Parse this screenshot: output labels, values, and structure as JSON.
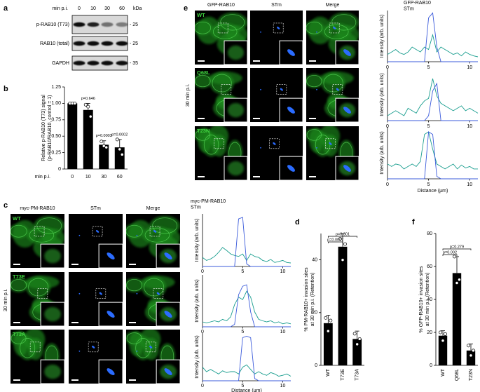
{
  "panel_labels": [
    "a",
    "b",
    "c",
    "d",
    "e",
    "f"
  ],
  "blot": {
    "header": "min p.i.",
    "lanes": [
      "0",
      "10",
      "30",
      "60"
    ],
    "unit": "kDa",
    "rows": [
      {
        "label": "p-RAB10 (T73)",
        "marker": "- 25"
      },
      {
        "label": "RAB10 (total)",
        "marker": "- 25"
      },
      {
        "label": "GAPDH",
        "marker": "- 35"
      }
    ]
  },
  "micrographs_c": {
    "columns": [
      "myc-PM-RAB10",
      "STm",
      "Merge"
    ],
    "header_colors": [
      "#3aa63a",
      "#2563d9",
      "#000000"
    ],
    "rows": [
      "WT",
      "T73E",
      "T73A"
    ],
    "side_label": "30 min p.i."
  },
  "micrographs_e": {
    "columns": [
      "GFP-RAB10",
      "STm",
      "Merge"
    ],
    "header_colors": [
      "#3aa63a",
      "#2563d9",
      "#000000"
    ],
    "rows": [
      "WT",
      "Q68L",
      "T23N"
    ],
    "side_label": "30 min p.i."
  },
  "chart_data": [
    {
      "type": "bar",
      "ylabel": [
        "Relative p-RAB10 (T73) signal",
        "(p-RAB10/RAB10, control = 1)"
      ],
      "xlabel": "min p.i.",
      "categories": [
        "0",
        "10",
        "30",
        "60"
      ],
      "values": [
        1.0,
        0.9,
        0.37,
        0.33
      ],
      "errors": [
        0,
        0.1,
        0.06,
        0.12
      ],
      "points": [
        [
          1,
          1,
          1
        ],
        [
          0.98,
          0.95,
          0.8
        ],
        [
          0.42,
          0.35,
          0.33
        ],
        [
          0.45,
          0.3,
          0.22
        ]
      ],
      "pvalues": [
        null,
        "p=0.646",
        "p=0.0003",
        "p=0.0002"
      ],
      "color": "#000000",
      "ylim": [
        0,
        1.25
      ],
      "yticks": [
        0,
        0.25,
        {
          "value": 0.5,
          "label": "0.50"
        },
        0.75,
        {
          "value": 1,
          "label": "1.00"
        },
        1.25
      ]
    },
    {
      "type": "line",
      "ylabel": "Intensity (arb. units)",
      "xlim": [
        0,
        11
      ],
      "ylim": [
        0,
        1.05
      ],
      "xticks": [
        0,
        5,
        10
      ],
      "x": [
        0,
        0.5,
        1,
        1.5,
        2,
        2.5,
        3,
        3.5,
        4,
        4.5,
        5,
        5.5,
        6,
        6.5,
        7,
        7.5,
        8,
        8.5,
        9,
        9.5,
        10,
        10.5,
        11
      ],
      "series": [
        {
          "name": "myc-PM-RAB10",
          "color": "#1a9e8f",
          "values": [
            0.18,
            0.12,
            0.15,
            0.2,
            0.28,
            0.38,
            0.32,
            0.25,
            0.22,
            0.2,
            0.25,
            0.12,
            0.25,
            0.2,
            0.18,
            0.12,
            0.1,
            0.14,
            0.08,
            0.1,
            0.12,
            0.08,
            0.07
          ]
        },
        {
          "name": "STm",
          "color": "#3b5bdb",
          "values": [
            0,
            0,
            0,
            0,
            0,
            0,
            0,
            0,
            0,
            0.95,
            0.98,
            0.05,
            0,
            0,
            0,
            0,
            0,
            0,
            0,
            0,
            0,
            0,
            0
          ]
        }
      ]
    },
    {
      "type": "line",
      "ylabel": "Intensity (arb. units)",
      "xlim": [
        0,
        11
      ],
      "ylim": [
        0,
        1.05
      ],
      "xticks": [
        0,
        5,
        10
      ],
      "x": [
        0,
        0.5,
        1,
        1.5,
        2,
        2.5,
        3,
        3.5,
        4,
        4.5,
        5,
        5.5,
        6,
        6.5,
        7,
        7.5,
        8,
        8.5,
        9,
        9.5,
        10,
        10.5,
        11
      ],
      "series": [
        {
          "color": "#1a9e8f",
          "values": [
            0.1,
            0.08,
            0.1,
            0.12,
            0.1,
            0.15,
            0.12,
            0.2,
            0.45,
            0.6,
            0.55,
            0.72,
            0.6,
            0.3,
            0.15,
            0.12,
            0.1,
            0.12,
            0.08,
            0.1,
            0.06,
            0.08,
            0.06
          ]
        },
        {
          "color": "#3b5bdb",
          "values": [
            0,
            0,
            0,
            0,
            0,
            0,
            0,
            0,
            0.05,
            0.65,
            0.82,
            0.85,
            0.3,
            0,
            0,
            0,
            0,
            0,
            0,
            0,
            0,
            0,
            0
          ]
        }
      ]
    },
    {
      "type": "line",
      "ylabel": "Intensity (arb. units)",
      "xlabel": "Distance (μm)",
      "xlim": [
        0,
        11
      ],
      "ylim": [
        0,
        1.05
      ],
      "xticks": [
        0,
        5,
        10
      ],
      "x": [
        0,
        0.5,
        1,
        1.5,
        2,
        2.5,
        3,
        3.5,
        4,
        4.5,
        5,
        5.5,
        6,
        6.5,
        7,
        7.5,
        8,
        8.5,
        9,
        9.5,
        10,
        10.5,
        11
      ],
      "series": [
        {
          "color": "#1a9e8f",
          "values": [
            0.3,
            0.2,
            0.25,
            0.2,
            0.15,
            0.22,
            0.18,
            0.2,
            0.2,
            0.15,
            0.3,
            0.35,
            0.25,
            0.15,
            0.2,
            0.15,
            0.12,
            0.18,
            0.15,
            0.1,
            0.12,
            0.15,
            0.1
          ]
        },
        {
          "color": "#3b5bdb",
          "values": [
            0,
            0,
            0,
            0,
            0,
            0,
            0,
            0,
            0,
            0,
            0.95,
            0.98,
            0.95,
            0.05,
            0,
            0,
            0,
            0,
            0,
            0,
            0,
            0,
            0
          ]
        }
      ]
    },
    {
      "type": "bar",
      "ylabel": [
        "% PM-RAB10+ invasion sites",
        "at 30 min p.i. (Retention)"
      ],
      "categories": [
        "WT",
        "T73E",
        "T73A"
      ],
      "values": [
        16,
        45,
        10
      ],
      "errors": [
        3,
        5,
        3
      ],
      "points": [
        [
          18,
          13,
          17
        ],
        [
          48,
          40,
          46
        ],
        [
          12,
          8,
          10
        ]
      ],
      "color": "#000000",
      "comparisons": [
        {
          "pair": [
            "WT",
            "T73E"
          ],
          "label": "p=0.0007"
        },
        {
          "pair": [
            "WT",
            "T73A"
          ],
          "label": "p=0.301"
        }
      ],
      "ylim": [
        0,
        50
      ],
      "yticks": [
        0,
        20,
        40
      ]
    },
    {
      "type": "line",
      "ylabel": "Intensity (arb. units)",
      "xlim": [
        0,
        11
      ],
      "ylim": [
        0,
        1.05
      ],
      "xticks": [
        0,
        5,
        10
      ],
      "x": [
        0,
        0.5,
        1,
        1.5,
        2,
        2.5,
        3,
        3.5,
        4,
        4.5,
        5,
        5.5,
        6,
        6.5,
        7,
        7.5,
        8,
        8.5,
        9,
        9.5,
        10,
        10.5,
        11
      ],
      "series": [
        {
          "name": "GFP-RAB10",
          "color": "#1a9e8f",
          "values": [
            0.15,
            0.2,
            0.25,
            0.18,
            0.15,
            0.2,
            0.3,
            0.25,
            0.2,
            0.3,
            0.25,
            0.55,
            0.2,
            0.3,
            0.25,
            0.2,
            0.15,
            0.18,
            0.12,
            0.2,
            0.15,
            0.12,
            0.1
          ]
        },
        {
          "name": "STm",
          "color": "#3b5bdb",
          "values": [
            0,
            0,
            0,
            0,
            0,
            0,
            0,
            0,
            0,
            0,
            0.9,
            1.0,
            0.3,
            0,
            0,
            0,
            0,
            0,
            0,
            0,
            0,
            0,
            0
          ]
        }
      ]
    },
    {
      "type": "line",
      "ylabel": "Intensity (arb. units)",
      "xlim": [
        0,
        11
      ],
      "ylim": [
        0,
        1.05
      ],
      "xticks": [
        0,
        5,
        10
      ],
      "x": [
        0,
        0.5,
        1,
        1.5,
        2,
        2.5,
        3,
        3.5,
        4,
        4.5,
        5,
        5.5,
        6,
        6.5,
        7,
        7.5,
        8,
        8.5,
        9,
        9.5,
        10,
        10.5,
        11
      ],
      "series": [
        {
          "color": "#1a9e8f",
          "values": [
            0.1,
            0.15,
            0.2,
            0.15,
            0.1,
            0.25,
            0.2,
            0.15,
            0.3,
            0.4,
            0.45,
            0.85,
            0.5,
            0.35,
            0.3,
            0.25,
            0.2,
            0.25,
            0.3,
            0.2,
            0.25,
            0.2,
            0.15
          ]
        },
        {
          "color": "#3b5bdb",
          "values": [
            0,
            0,
            0,
            0,
            0,
            0,
            0,
            0,
            0,
            0,
            0.1,
            0.6,
            0.75,
            0,
            0,
            0,
            0,
            0,
            0,
            0,
            0,
            0,
            0
          ]
        }
      ]
    },
    {
      "type": "line",
      "ylabel": "Intensity (arb. units)",
      "xlabel": "Distance (μm)",
      "xlim": [
        0,
        11
      ],
      "ylim": [
        0,
        1.05
      ],
      "xticks": [
        0,
        5,
        10
      ],
      "x": [
        0,
        0.5,
        1,
        1.5,
        2,
        2.5,
        3,
        3.5,
        4,
        4.5,
        5,
        5.5,
        6,
        6.5,
        7,
        7.5,
        8,
        8.5,
        9,
        9.5,
        10,
        10.5,
        11
      ],
      "series": [
        {
          "color": "#1a9e8f",
          "values": [
            0.3,
            0.25,
            0.3,
            0.28,
            0.2,
            0.25,
            0.3,
            0.25,
            0.35,
            0.9,
            0.95,
            0.6,
            0.3,
            0.25,
            0.2,
            0.25,
            0.3,
            0.2,
            0.28,
            0.22,
            0.25,
            0.2,
            0.2
          ]
        },
        {
          "color": "#3b5bdb",
          "values": [
            0,
            0,
            0,
            0,
            0,
            0,
            0,
            0,
            0,
            0,
            0.95,
            0.9,
            0.05,
            0,
            0,
            0,
            0,
            0,
            0,
            0,
            0,
            0,
            0
          ]
        }
      ]
    },
    {
      "type": "bar",
      "ylabel": [
        "% GFP-RAB10+ invasion sites",
        "at 30 min p.i. (Retention)"
      ],
      "categories": [
        "WT",
        "Q68L",
        "T23N"
      ],
      "values": [
        18,
        56,
        9
      ],
      "errors": [
        3,
        10,
        4
      ],
      "points": [
        [
          20,
          15,
          19
        ],
        [
          66,
          50,
          52
        ],
        [
          12,
          6,
          9
        ]
      ],
      "color": "#000000",
      "comparisons": [
        {
          "pair": [
            "WT",
            "Q68L"
          ],
          "label": "p=0.002"
        },
        {
          "pair": [
            "WT",
            "T23N"
          ],
          "label": "p=0.279"
        }
      ],
      "ylim": [
        0,
        80
      ],
      "yticks": [
        0,
        20,
        40,
        60,
        80
      ]
    }
  ]
}
